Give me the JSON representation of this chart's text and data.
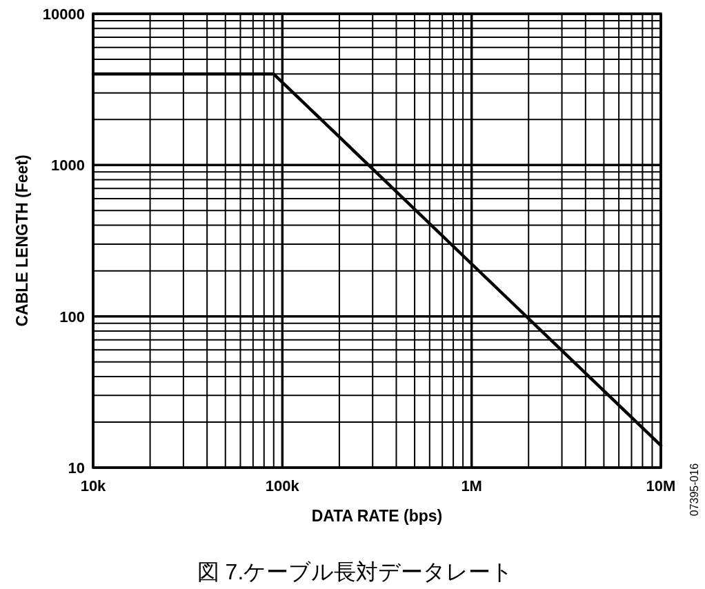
{
  "chart_data": {
    "type": "line",
    "xlabel": "DATA RATE (bps)",
    "ylabel": "CABLE LENGTH (Feet)",
    "annotations": [
      "図 7.ケーブル長対データレート",
      "07395-016"
    ],
    "log": "xy",
    "grid": true,
    "xlim": [
      10000,
      10000000
    ],
    "xticks": [
      {
        "value": 10000,
        "label": "10k"
      },
      {
        "value": 100000,
        "label": "100k"
      },
      {
        "value": 1000000,
        "label": "1M"
      },
      {
        "value": 10000000,
        "label": "10M"
      }
    ],
    "ylim": [
      10,
      10000
    ],
    "yticks": [
      10,
      100,
      1000,
      10000
    ],
    "x": [
      10000,
      90000,
      10000000
    ],
    "series": [
      {
        "color": "#000000",
        "values": [
          4000,
          4000,
          14
        ]
      }
    ]
  }
}
